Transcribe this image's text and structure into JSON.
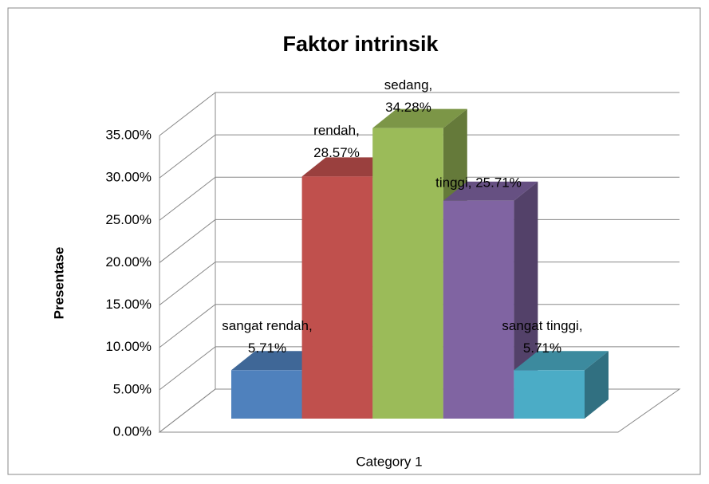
{
  "chart_data": {
    "type": "bar3d",
    "title": "Faktor intrinsik",
    "y_label": "Presentase",
    "categories": [
      "Category 1"
    ],
    "series": [
      {
        "name": "sangat rendah",
        "color": "#4f81bd",
        "values": [
          5.71
        ],
        "value_labels": [
          "sangat rendah, 5.71%"
        ]
      },
      {
        "name": "rendah",
        "color": "#c0504d",
        "values": [
          28.57
        ],
        "value_labels": [
          "rendah, 28.57%"
        ]
      },
      {
        "name": "sedang",
        "color": "#9bbb59",
        "values": [
          34.28
        ],
        "value_labels": [
          "sedang, 34.28%"
        ]
      },
      {
        "name": "tinggi",
        "color": "#8064a2",
        "values": [
          25.71
        ],
        "value_labels": [
          "tinggi, 25.71%"
        ]
      },
      {
        "name": "sangat tinggi",
        "color": "#4bacc6",
        "values": [
          5.71
        ],
        "value_labels": [
          "sangat tinggi, 5.71%"
        ]
      }
    ],
    "ylim": [
      0,
      35
    ],
    "yticks": [
      {
        "value": 0,
        "label": "0.00%"
      },
      {
        "value": 5,
        "label": "5.00%"
      },
      {
        "value": 10,
        "label": "10.00%"
      },
      {
        "value": 15,
        "label": "15.00%"
      },
      {
        "value": 20,
        "label": "20.00%"
      },
      {
        "value": 25,
        "label": "25.00%"
      },
      {
        "value": 30,
        "label": "30.00%"
      },
      {
        "value": 35,
        "label": "35.00%"
      }
    ],
    "grid": true
  }
}
